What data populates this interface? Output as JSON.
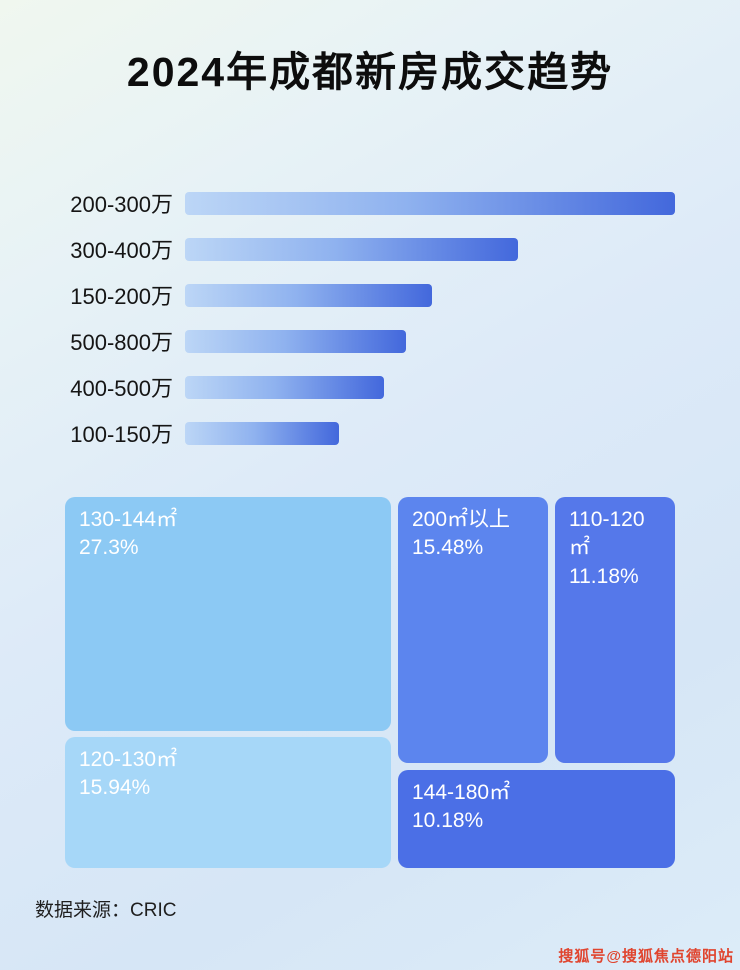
{
  "page": {
    "title": "2024年成都新房成交趋势",
    "source": "数据来源：CRIC",
    "watermark": "搜狐号@搜狐焦点德阳站"
  },
  "colors": {
    "background_top": "#f0f7ef",
    "background_bottom": "#d6e6f6",
    "bar_gradient_start": "#bcd6f6",
    "bar_gradient_end": "#4368dc",
    "title_text": "#0d0d0d",
    "treemap_text": "#ffffff",
    "watermark_red": "#e0452f"
  },
  "chart_data": [
    {
      "type": "bar",
      "orientation": "horizontal",
      "title": "2024年成都新房成交趋势",
      "categories": [
        "200-300万",
        "300-400万",
        "150-200万",
        "500-800万",
        "400-500万",
        "100-150万"
      ],
      "values": [
        100,
        68,
        50.5,
        45.2,
        40.6,
        31.5
      ],
      "value_note": "relative bar length as % of longest bar; no numeric axis or data labels shown",
      "xlabel": "",
      "ylabel": "",
      "grid": false,
      "legend": false
    },
    {
      "type": "treemap",
      "title": "",
      "items": [
        {
          "label": "130-144㎡",
          "value": "27.3%",
          "color": "#8cc9f4"
        },
        {
          "label": "200㎡以上",
          "value": "15.48%",
          "color": "#5c85ee"
        },
        {
          "label": "110-120㎡",
          "value": "11.18%",
          "color": "#5578ea"
        },
        {
          "label": "120-130㎡",
          "value": "15.94%",
          "color": "#a6d7f8"
        },
        {
          "label": "144-180㎡",
          "value": "10.18%",
          "color": "#4b6fe6"
        }
      ]
    }
  ]
}
